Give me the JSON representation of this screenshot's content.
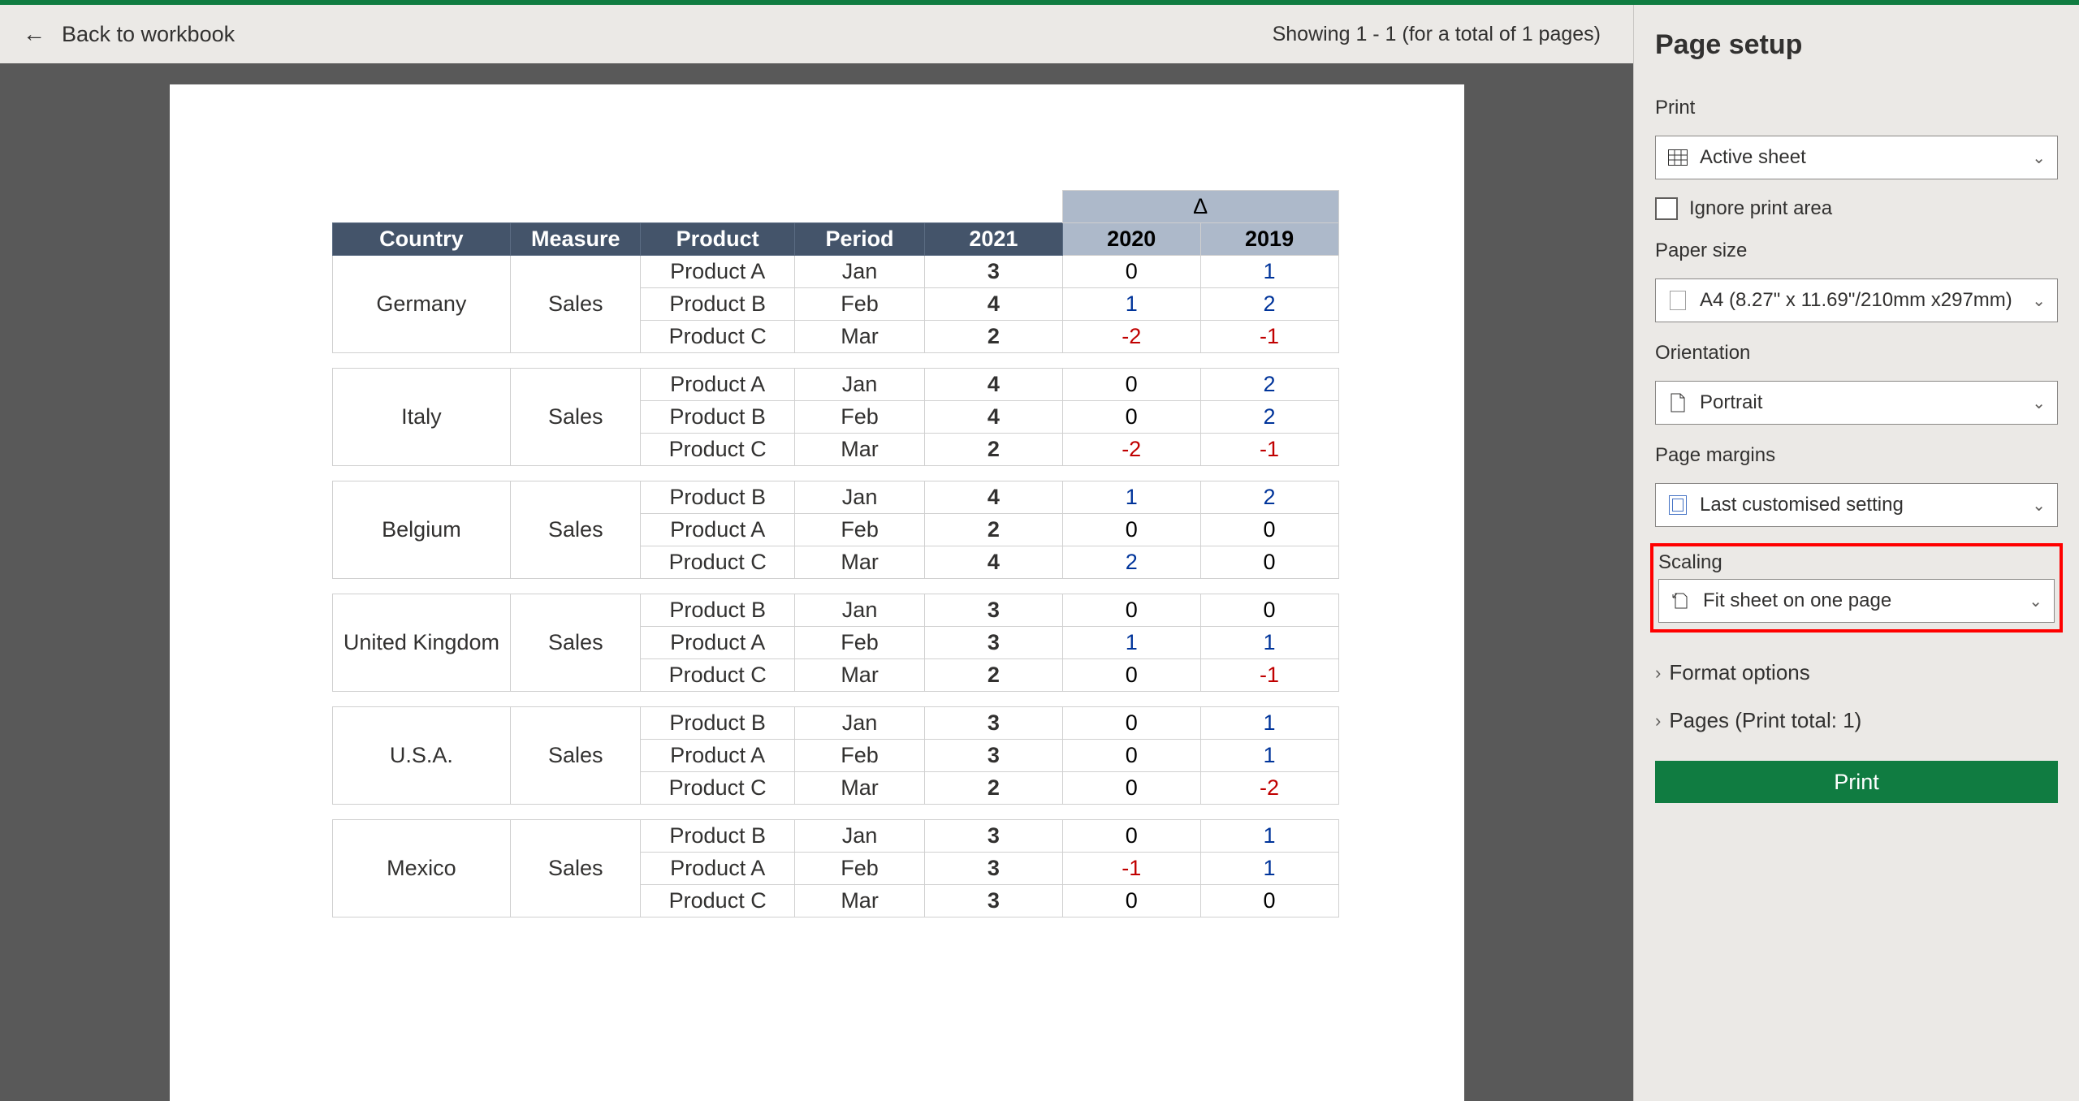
{
  "topbar": {
    "back_label": "Back to workbook",
    "showing": "Showing 1 - 1 (for a total of 1 pages)"
  },
  "table": {
    "delta_symbol": "Δ",
    "headers": {
      "country": "Country",
      "measure": "Measure",
      "product": "Product",
      "period": "Period",
      "y2021": "2021",
      "y2020": "2020",
      "y2019": "2019"
    },
    "groups": [
      {
        "country": "Germany",
        "measure": "Sales",
        "rows": [
          {
            "product": "Product A",
            "period": "Jan",
            "y2021": "3",
            "d2020": "0",
            "d2019": "1",
            "c2020": "zero",
            "c2019": "delta"
          },
          {
            "product": "Product B",
            "period": "Feb",
            "y2021": "4",
            "d2020": "1",
            "d2019": "2",
            "c2020": "delta",
            "c2019": "delta"
          },
          {
            "product": "Product C",
            "period": "Mar",
            "y2021": "2",
            "d2020": "-2",
            "d2019": "-1",
            "c2020": "neg",
            "c2019": "neg"
          }
        ]
      },
      {
        "country": "Italy",
        "measure": "Sales",
        "rows": [
          {
            "product": "Product A",
            "period": "Jan",
            "y2021": "4",
            "d2020": "0",
            "d2019": "2",
            "c2020": "zero",
            "c2019": "delta"
          },
          {
            "product": "Product B",
            "period": "Feb",
            "y2021": "4",
            "d2020": "0",
            "d2019": "2",
            "c2020": "zero",
            "c2019": "delta"
          },
          {
            "product": "Product C",
            "period": "Mar",
            "y2021": "2",
            "d2020": "-2",
            "d2019": "-1",
            "c2020": "neg",
            "c2019": "neg"
          }
        ]
      },
      {
        "country": "Belgium",
        "measure": "Sales",
        "rows": [
          {
            "product": "Product B",
            "period": "Jan",
            "y2021": "4",
            "d2020": "1",
            "d2019": "2",
            "c2020": "delta",
            "c2019": "delta"
          },
          {
            "product": "Product A",
            "period": "Feb",
            "y2021": "2",
            "d2020": "0",
            "d2019": "0",
            "c2020": "zero",
            "c2019": "zero"
          },
          {
            "product": "Product C",
            "period": "Mar",
            "y2021": "4",
            "d2020": "2",
            "d2019": "0",
            "c2020": "delta",
            "c2019": "zero"
          }
        ]
      },
      {
        "country": "United Kingdom",
        "measure": "Sales",
        "rows": [
          {
            "product": "Product B",
            "period": "Jan",
            "y2021": "3",
            "d2020": "0",
            "d2019": "0",
            "c2020": "zero",
            "c2019": "zero"
          },
          {
            "product": "Product A",
            "period": "Feb",
            "y2021": "3",
            "d2020": "1",
            "d2019": "1",
            "c2020": "delta",
            "c2019": "delta"
          },
          {
            "product": "Product C",
            "period": "Mar",
            "y2021": "2",
            "d2020": "0",
            "d2019": "-1",
            "c2020": "zero",
            "c2019": "neg"
          }
        ]
      },
      {
        "country": "U.S.A.",
        "measure": "Sales",
        "rows": [
          {
            "product": "Product B",
            "period": "Jan",
            "y2021": "3",
            "d2020": "0",
            "d2019": "1",
            "c2020": "zero",
            "c2019": "delta"
          },
          {
            "product": "Product A",
            "period": "Feb",
            "y2021": "3",
            "d2020": "0",
            "d2019": "1",
            "c2020": "zero",
            "c2019": "delta"
          },
          {
            "product": "Product C",
            "period": "Mar",
            "y2021": "2",
            "d2020": "0",
            "d2019": "-2",
            "c2020": "zero",
            "c2019": "neg"
          }
        ]
      },
      {
        "country": "Mexico",
        "measure": "Sales",
        "rows": [
          {
            "product": "Product B",
            "period": "Jan",
            "y2021": "3",
            "d2020": "0",
            "d2019": "1",
            "c2020": "zero",
            "c2019": "delta"
          },
          {
            "product": "Product A",
            "period": "Feb",
            "y2021": "3",
            "d2020": "-1",
            "d2019": "1",
            "c2020": "neg",
            "c2019": "delta"
          },
          {
            "product": "Product C",
            "period": "Mar",
            "y2021": "3",
            "d2020": "0",
            "d2019": "0",
            "c2020": "zero",
            "c2019": "zero"
          }
        ]
      }
    ]
  },
  "panel": {
    "title": "Page setup",
    "print_label": "Print",
    "print_dd": "Active sheet",
    "ignore_print_area": "Ignore print area",
    "paper_size_label": "Paper size",
    "paper_size_dd": "A4 (8.27\" x 11.69\"/210mm x297mm)",
    "orientation_label": "Orientation",
    "orientation_dd": "Portrait",
    "margins_label": "Page margins",
    "margins_dd": "Last customised setting",
    "scaling_label": "Scaling",
    "scaling_dd": "Fit sheet on one page",
    "format_options": "Format options",
    "pages_disc": "Pages (Print total: 1)",
    "print_btn": "Print"
  }
}
